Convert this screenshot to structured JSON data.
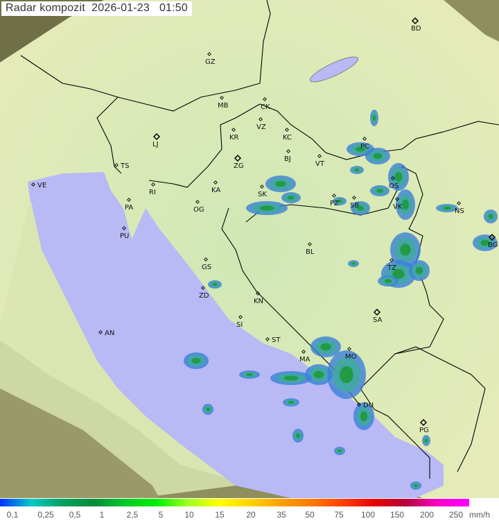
{
  "title": "Radar kompozit",
  "date": "2026-01-23",
  "time": "01:50",
  "colors": {
    "sea": "#b9b9f5",
    "land_in_range": "#d6ebb8",
    "land_out_of_range": "#8e8f5c",
    "border": "#000000",
    "radar_light": "#3a7fd8",
    "radar_mid": "#3fa8a0",
    "radar_strong": "#1f9a3a"
  },
  "cities": [
    "BD",
    "GZ",
    "MB",
    "CK",
    "VZ",
    "KR",
    "KC",
    "LJ",
    "BJ",
    "VT",
    "ZG",
    "TS",
    "VE",
    "RI",
    "KA",
    "SK",
    "PC",
    "OS",
    "PZ",
    "SB",
    "VK",
    "NS",
    "PA",
    "OG",
    "PU",
    "BG",
    "BL",
    "TZ",
    "GS",
    "ZD",
    "KN",
    "SA",
    "SI",
    "AN",
    "ST",
    "MA",
    "MO",
    "DU",
    "PG"
  ],
  "legend": {
    "unit": "mm/h",
    "labels": [
      "0,1",
      "0,25",
      "0,5",
      "1",
      "2,5",
      "5",
      "10",
      "15",
      "20",
      "35",
      "50",
      "75",
      "100",
      "150",
      "200",
      "250"
    ],
    "gradient": [
      "#0030ff",
      "#00c8c8",
      "#00a060",
      "#008c3c",
      "#00c828",
      "#00f000",
      "#a0ff20",
      "#ffff00",
      "#ffd200",
      "#ffa000",
      "#ff7800",
      "#ff3c00",
      "#e60000",
      "#b4003c",
      "#ff00c8",
      "#ff00ff"
    ]
  }
}
